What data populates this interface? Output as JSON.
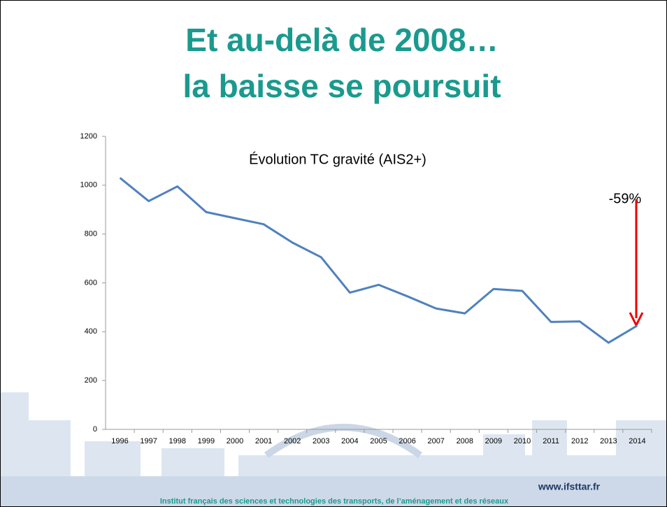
{
  "slide": {
    "title": [
      "Et au-delà de 2008…",
      "la baisse se poursuit"
    ],
    "website": "www.ifsttar.fr",
    "footer": "Institut français des sciences et technologies des transports, de l’aménagement et des réseaux"
  },
  "chart_data": {
    "type": "line",
    "title": "Évolution TC gravité (AIS2+)",
    "annotation": "-59%",
    "categories": [
      "1996",
      "1997",
      "1998",
      "1999",
      "2000",
      "2001",
      "2002",
      "2003",
      "2004",
      "2005",
      "2006",
      "2007",
      "2008",
      "2009",
      "2010",
      "2011",
      "2012",
      "2013",
      "2014"
    ],
    "values": [
      1030,
      935,
      995,
      890,
      865,
      840,
      765,
      705,
      560,
      592,
      545,
      495,
      475,
      575,
      567,
      440,
      442,
      355,
      425
    ],
    "color": "#4f81bd",
    "ylim": [
      0,
      1200
    ],
    "yticks": [
      0,
      200,
      400,
      600,
      800,
      1000,
      1200
    ],
    "grid": false
  }
}
